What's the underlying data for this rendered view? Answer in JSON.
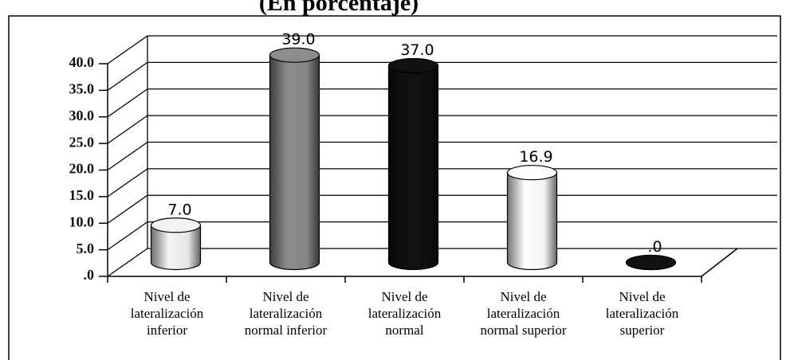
{
  "chart_data": {
    "type": "bar3d",
    "title": "(En porcentaje)",
    "categories": [
      "Nivel de\nlateralización\ninferior",
      "Nivel de\nlateralización\nnormal inferior",
      "Nivel de\nlateralización\nnormal",
      "Nivel de\nlateralización\nnormal superior",
      "Nivel de\nlateralización\nsuperior"
    ],
    "values": [
      7.0,
      39.0,
      37.0,
      16.9,
      0
    ],
    "value_labels": [
      "7.0",
      "39.0",
      "37.0",
      "16.9",
      ".0"
    ],
    "colors": [
      "#f2f2f2",
      "#8c8c8c",
      "#111111",
      "#ffffff",
      "#111111"
    ],
    "ylim": [
      0,
      40
    ],
    "yticks": [
      {
        "value": 0,
        "label": ".0"
      },
      {
        "value": 5,
        "label": "5.0"
      },
      {
        "value": 10,
        "label": "10.0"
      },
      {
        "value": 15,
        "label": "15.0"
      },
      {
        "value": 20,
        "label": "20.0"
      },
      {
        "value": 25,
        "label": "25.0"
      },
      {
        "value": 30,
        "label": "30.0"
      },
      {
        "value": 35,
        "label": "35.0"
      },
      {
        "value": 40,
        "label": "40.0"
      }
    ],
    "grid": true
  }
}
